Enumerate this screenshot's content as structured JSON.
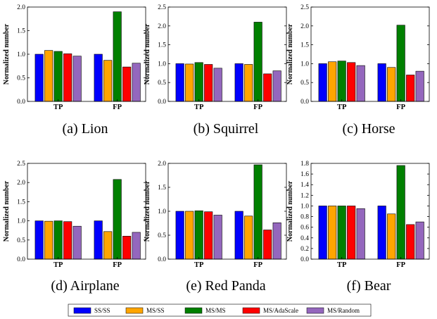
{
  "legend": [
    {
      "name": "SS/SS",
      "color": "#0000ff"
    },
    {
      "name": "MS/SS",
      "color": "#ffa500"
    },
    {
      "name": "MS/MS",
      "color": "#008000"
    },
    {
      "name": "MS/AdaScale",
      "color": "#ff0000"
    },
    {
      "name": "MS/Random",
      "color": "#9467bd"
    }
  ],
  "chart_data": [
    {
      "type": "bar",
      "caption": "(a) Lion",
      "ylabel": "Normalized number",
      "categories": [
        "TP",
        "FP"
      ],
      "ylim": [
        0,
        2.0
      ],
      "yticks": [
        "0.0",
        "0.5",
        "1.0",
        "1.5",
        "2.0"
      ],
      "ytick_values": [
        0,
        0.5,
        1.0,
        1.5,
        2.0
      ],
      "series": [
        {
          "name": "SS/SS",
          "values": [
            1.0,
            1.0
          ]
        },
        {
          "name": "MS/SS",
          "values": [
            1.08,
            0.87
          ]
        },
        {
          "name": "MS/MS",
          "values": [
            1.06,
            1.9
          ]
        },
        {
          "name": "MS/AdaScale",
          "values": [
            1.01,
            0.73
          ]
        },
        {
          "name": "MS/Random",
          "values": [
            0.96,
            0.81
          ]
        }
      ]
    },
    {
      "type": "bar",
      "caption": "(b) Squirrel",
      "ylabel": "Normalized number",
      "categories": [
        "TP",
        "FP"
      ],
      "ylim": [
        0,
        2.5
      ],
      "yticks": [
        "0.0",
        "0.5",
        "1.0",
        "1.5",
        "2.0",
        "2.5"
      ],
      "ytick_values": [
        0,
        0.5,
        1.0,
        1.5,
        2.0,
        2.5
      ],
      "series": [
        {
          "name": "SS/SS",
          "values": [
            1.0,
            1.0
          ]
        },
        {
          "name": "MS/SS",
          "values": [
            0.99,
            0.98
          ]
        },
        {
          "name": "MS/MS",
          "values": [
            1.03,
            2.1
          ]
        },
        {
          "name": "MS/AdaScale",
          "values": [
            0.98,
            0.73
          ]
        },
        {
          "name": "MS/Random",
          "values": [
            0.88,
            0.81
          ]
        }
      ]
    },
    {
      "type": "bar",
      "caption": "(c) Horse",
      "ylabel": "Normalized number",
      "categories": [
        "TP",
        "FP"
      ],
      "ylim": [
        0,
        2.5
      ],
      "yticks": [
        "0.0",
        "0.5",
        "1.0",
        "1.5",
        "2.0",
        "2.5"
      ],
      "ytick_values": [
        0,
        0.5,
        1.0,
        1.5,
        2.0,
        2.5
      ],
      "series": [
        {
          "name": "SS/SS",
          "values": [
            1.0,
            1.0
          ]
        },
        {
          "name": "MS/SS",
          "values": [
            1.05,
            0.9
          ]
        },
        {
          "name": "MS/MS",
          "values": [
            1.07,
            2.02
          ]
        },
        {
          "name": "MS/AdaScale",
          "values": [
            1.03,
            0.7
          ]
        },
        {
          "name": "MS/Random",
          "values": [
            0.95,
            0.8
          ]
        }
      ]
    },
    {
      "type": "bar",
      "caption": "(d) Airplane",
      "ylabel": "Normalized number",
      "categories": [
        "TP",
        "FP"
      ],
      "ylim": [
        0,
        2.5
      ],
      "yticks": [
        "0.0",
        "0.5",
        "1.0",
        "1.5",
        "2.0",
        "2.5"
      ],
      "ytick_values": [
        0,
        0.5,
        1.0,
        1.5,
        2.0,
        2.5
      ],
      "series": [
        {
          "name": "SS/SS",
          "values": [
            1.0,
            1.0
          ]
        },
        {
          "name": "MS/SS",
          "values": [
            0.99,
            0.72
          ]
        },
        {
          "name": "MS/MS",
          "values": [
            1.0,
            2.08
          ]
        },
        {
          "name": "MS/AdaScale",
          "values": [
            0.98,
            0.6
          ]
        },
        {
          "name": "MS/Random",
          "values": [
            0.86,
            0.7
          ]
        }
      ]
    },
    {
      "type": "bar",
      "caption": "(e) Red Panda",
      "ylabel": "Normalized number",
      "categories": [
        "TP",
        "FP"
      ],
      "ylim": [
        0,
        2.0
      ],
      "yticks": [
        "0.0",
        "0.5",
        "1.0",
        "1.5",
        "2.0"
      ],
      "ytick_values": [
        0,
        0.5,
        1.0,
        1.5,
        2.0
      ],
      "series": [
        {
          "name": "SS/SS",
          "values": [
            1.0,
            1.0
          ]
        },
        {
          "name": "MS/SS",
          "values": [
            1.0,
            0.9
          ]
        },
        {
          "name": "MS/MS",
          "values": [
            1.01,
            1.97
          ]
        },
        {
          "name": "MS/AdaScale",
          "values": [
            0.99,
            0.61
          ]
        },
        {
          "name": "MS/Random",
          "values": [
            0.92,
            0.76
          ]
        }
      ]
    },
    {
      "type": "bar",
      "caption": "(f) Bear",
      "ylabel": "Normalized number",
      "categories": [
        "TP",
        "FP"
      ],
      "ylim": [
        0,
        1.8
      ],
      "yticks": [
        "0.0",
        "0.2",
        "0.4",
        "0.6",
        "0.8",
        "1.0",
        "1.2",
        "1.4",
        "1.6",
        "1.8"
      ],
      "ytick_values": [
        0,
        0.2,
        0.4,
        0.6,
        0.8,
        1.0,
        1.2,
        1.4,
        1.6,
        1.8
      ],
      "series": [
        {
          "name": "SS/SS",
          "values": [
            1.0,
            1.0
          ]
        },
        {
          "name": "MS/SS",
          "values": [
            1.0,
            0.85
          ]
        },
        {
          "name": "MS/MS",
          "values": [
            1.0,
            1.76
          ]
        },
        {
          "name": "MS/AdaScale",
          "values": [
            1.0,
            0.65
          ]
        },
        {
          "name": "MS/Random",
          "values": [
            0.95,
            0.7
          ]
        }
      ]
    }
  ]
}
